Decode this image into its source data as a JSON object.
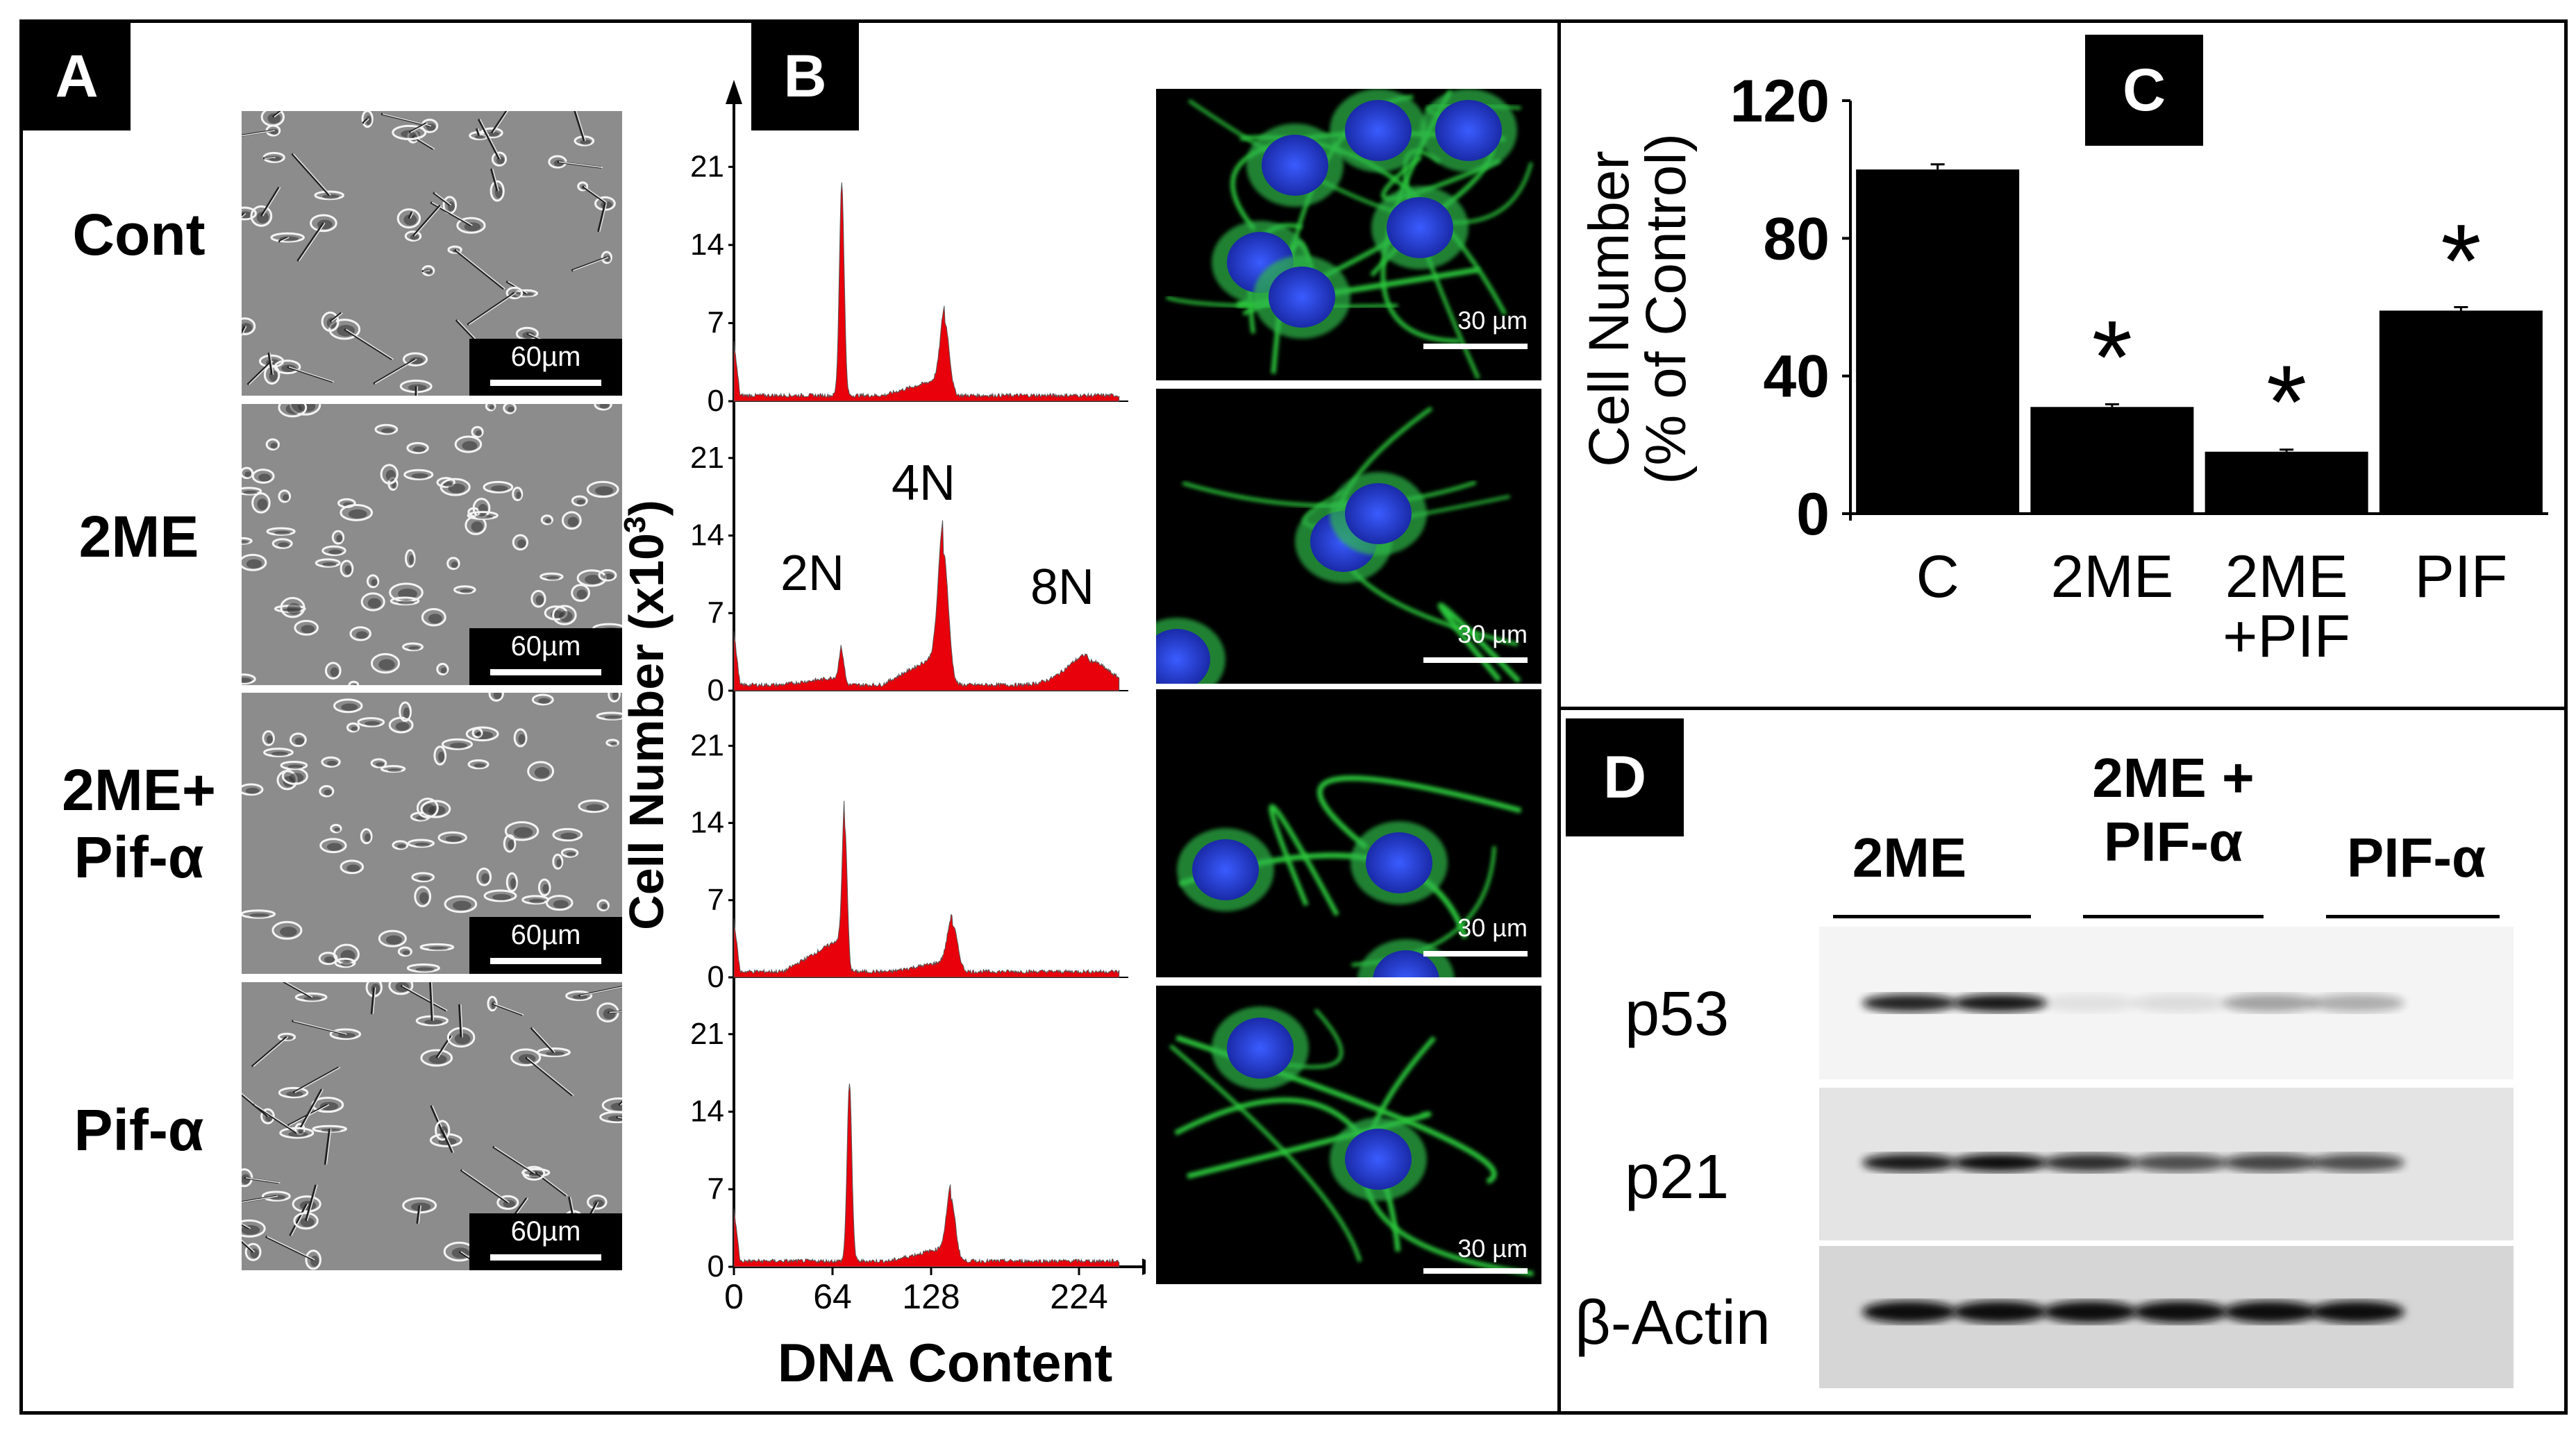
{
  "panel_a": {
    "label": "A",
    "rows": [
      {
        "label_lines": [
          "Cont"
        ],
        "scale": "60µm"
      },
      {
        "label_lines": [
          "2ME"
        ],
        "scale": "60µm"
      },
      {
        "label_lines": [
          "2ME+",
          "Pif-α"
        ],
        "scale": "60µm"
      },
      {
        "label_lines": [
          "Pif-α"
        ],
        "scale": "60µm"
      }
    ]
  },
  "panel_b": {
    "label": "B",
    "ylabel": "Cell Number (x10",
    "ylabel_sup": "3",
    "ylabel_end": ")",
    "xlabel": "DNA Content",
    "yticks": [
      "0",
      "7",
      "14",
      "21"
    ],
    "xticks": [
      "0",
      "64",
      "128",
      "224"
    ],
    "peak_labels": {
      "p2n": "2N",
      "p4n": "4N",
      "p8n": "8N"
    },
    "fluor_scale": "30 µm",
    "hist_color": "#e8000b"
  },
  "panel_c": {
    "label": "C",
    "asterisk": "*"
  },
  "chart_data": {
    "type": "bar",
    "categories": [
      "C",
      "2ME",
      "2ME\n+PIF",
      "PIF"
    ],
    "category_lines": [
      [
        "C"
      ],
      [
        "2ME"
      ],
      [
        "2ME",
        "+PIF"
      ],
      [
        "PIF"
      ]
    ],
    "values": [
      100,
      31,
      18,
      59
    ],
    "errors": [
      1.5,
      0.8,
      0.6,
      1.0
    ],
    "significant": [
      false,
      true,
      true,
      true
    ],
    "ylabel_line1": "Cell Number",
    "ylabel_line2": "(% of Control)",
    "yticks": [
      "0",
      "40",
      "80",
      "120"
    ],
    "ylim": [
      0,
      120
    ],
    "bar_color": "#000000"
  },
  "panel_d": {
    "label": "D",
    "lane_groups": [
      {
        "lines": [
          "2ME"
        ]
      },
      {
        "lines": [
          "2ME +",
          "PIF-α"
        ]
      },
      {
        "lines": [
          "PIF-α"
        ]
      }
    ],
    "blots": [
      {
        "label": "p53",
        "intensity": [
          0.9,
          0.95,
          0.08,
          0.1,
          0.35,
          0.3
        ]
      },
      {
        "label": "p21",
        "intensity": [
          0.95,
          1.0,
          0.85,
          0.7,
          0.75,
          0.7
        ]
      },
      {
        "label": "β-Actin",
        "intensity": [
          1.0,
          1.0,
          1.0,
          1.0,
          1.0,
          1.0
        ]
      }
    ]
  }
}
